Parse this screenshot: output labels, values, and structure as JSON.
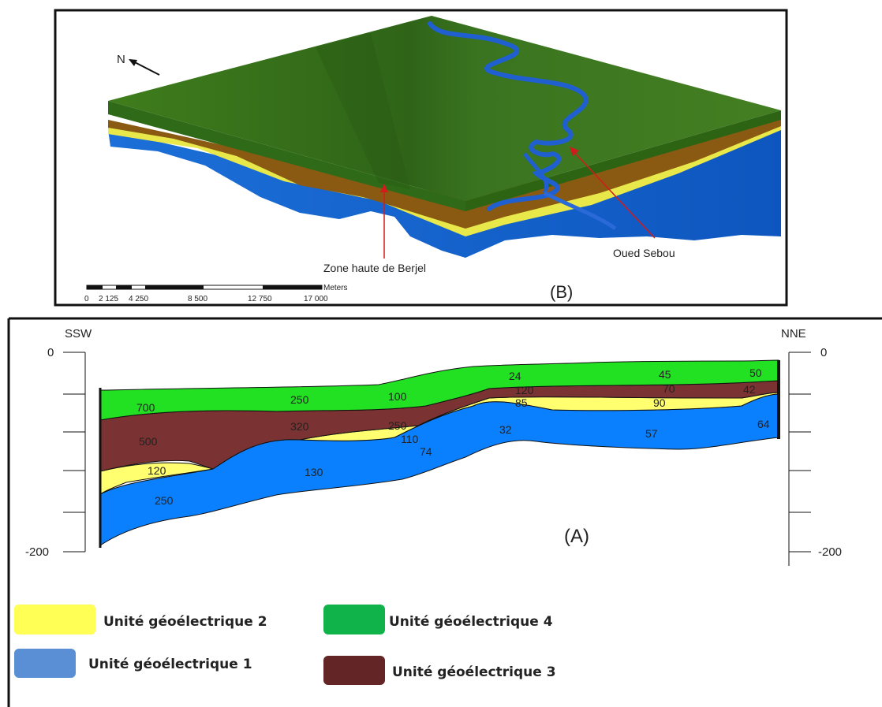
{
  "panel_b": {
    "north": "N",
    "label": "(B)",
    "zone_haute": "Zone haute de Berjel",
    "oued": "Oued Sebou",
    "scale_unit": "Meters",
    "scale_ticks": [
      "0",
      "2 125",
      "4 250",
      "8 500",
      "12 750",
      "17 000"
    ]
  },
  "panel_a": {
    "label": "(A)",
    "left_end": "SSW",
    "right_end": "NNE",
    "left_axis": [
      "0",
      "-200"
    ],
    "right_axis": [
      "0",
      "-200"
    ],
    "resistivity": {
      "unit4": [
        "700",
        "250",
        "100",
        "24",
        "45",
        "50"
      ],
      "unit3": [
        "500",
        "320",
        "250",
        "120",
        "70",
        "42"
      ],
      "unit2": [
        "120",
        "110",
        "85",
        "90"
      ],
      "unit1": [
        "250",
        "130",
        "74",
        "32",
        "57",
        "64"
      ]
    }
  },
  "legend": {
    "unit2": "Unité géoélectrique 2",
    "unit4": "Unité géoélectrique 4",
    "unit1": "Unité géoélectrique 1",
    "unit3": "Unité géoélectrique 3"
  },
  "colors": {
    "unit1": "#1e90ff",
    "unit2": "#ffff80",
    "unit3": "#7a3030",
    "unit4": "#22dd22",
    "terrain": "#3d7a1e",
    "river": "#1f5fd0"
  }
}
